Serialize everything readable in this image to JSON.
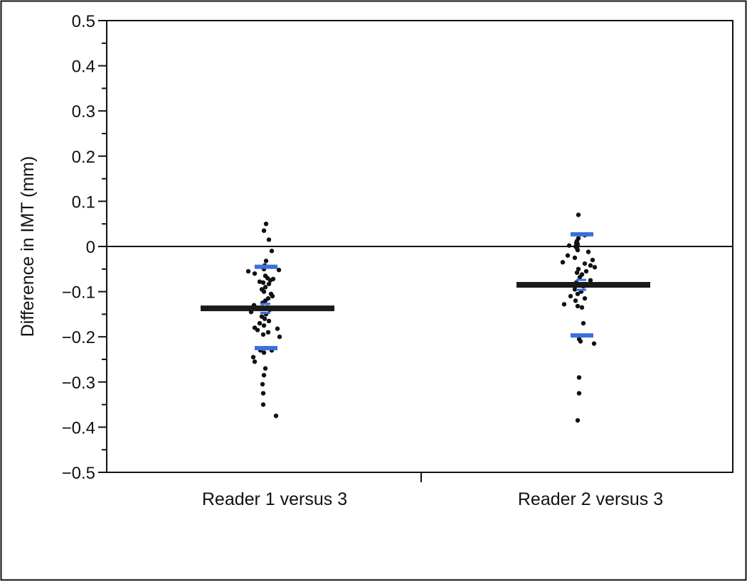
{
  "chart_data": {
    "type": "scatter",
    "ylabel": "Difference in IMT (mm)",
    "ylim": [
      -0.5,
      0.5
    ],
    "yticks": [
      "0.5",
      "0.4",
      "0.3",
      "0.2",
      "0.1",
      "0",
      "−0.1",
      "−0.2",
      "−0.3",
      "−0.4",
      "−0.5"
    ],
    "ytick_values": [
      0.5,
      0.4,
      0.3,
      0.2,
      0.1,
      0,
      -0.1,
      -0.2,
      -0.3,
      -0.4,
      -0.5
    ],
    "categories": [
      "Reader 1 versus 3",
      "Reader 2 versus 3"
    ],
    "reference_line": 0,
    "grid": false,
    "colors": {
      "points": "#111111",
      "mean": "#1a1a1a",
      "limits": "#3a6fe0"
    },
    "groups": [
      {
        "category": "Reader 1 versus 3",
        "mean": -0.137,
        "limits_of_agreement": [
          -0.045,
          -0.225
        ],
        "mean_ci": [
          -0.127,
          -0.147
        ],
        "points": [
          {
            "jitter": 0.04,
            "y": 0.05
          },
          {
            "jitter": 0.01,
            "y": 0.035
          },
          {
            "jitter": 0.08,
            "y": 0.015
          },
          {
            "jitter": 0.12,
            "y": -0.01
          },
          {
            "jitter": 0.04,
            "y": -0.032
          },
          {
            "jitter": 0.02,
            "y": -0.042
          },
          {
            "jitter": 0.01,
            "y": -0.05
          },
          {
            "jitter": 0.22,
            "y": -0.052
          },
          {
            "jitter": -0.21,
            "y": -0.055
          },
          {
            "jitter": -0.12,
            "y": -0.06
          },
          {
            "jitter": 0.03,
            "y": -0.065
          },
          {
            "jitter": 0.06,
            "y": -0.07
          },
          {
            "jitter": 0.14,
            "y": -0.072
          },
          {
            "jitter": 0.1,
            "y": -0.075
          },
          {
            "jitter": -0.05,
            "y": -0.078
          },
          {
            "jitter": 0.0,
            "y": -0.08
          },
          {
            "jitter": 0.08,
            "y": -0.083
          },
          {
            "jitter": 0.03,
            "y": -0.09
          },
          {
            "jitter": -0.02,
            "y": -0.095
          },
          {
            "jitter": 0.01,
            "y": -0.1
          },
          {
            "jitter": 0.11,
            "y": -0.105
          },
          {
            "jitter": 0.13,
            "y": -0.11
          },
          {
            "jitter": 0.07,
            "y": -0.115
          },
          {
            "jitter": 0.03,
            "y": -0.12
          },
          {
            "jitter": -0.01,
            "y": -0.125
          },
          {
            "jitter": -0.13,
            "y": -0.13
          },
          {
            "jitter": 0.06,
            "y": -0.135
          },
          {
            "jitter": -0.16,
            "y": -0.138
          },
          {
            "jitter": 0.09,
            "y": -0.14
          },
          {
            "jitter": -0.17,
            "y": -0.145
          },
          {
            "jitter": 0.04,
            "y": -0.15
          },
          {
            "jitter": -0.02,
            "y": -0.155
          },
          {
            "jitter": 0.02,
            "y": -0.16
          },
          {
            "jitter": 0.08,
            "y": -0.165
          },
          {
            "jitter": -0.05,
            "y": -0.17
          },
          {
            "jitter": 0.01,
            "y": -0.175
          },
          {
            "jitter": -0.12,
            "y": -0.18
          },
          {
            "jitter": 0.2,
            "y": -0.182
          },
          {
            "jitter": -0.08,
            "y": -0.185
          },
          {
            "jitter": 0.07,
            "y": -0.19
          },
          {
            "jitter": 0.0,
            "y": -0.195
          },
          {
            "jitter": 0.23,
            "y": -0.2
          },
          {
            "jitter": 0.04,
            "y": -0.225
          },
          {
            "jitter": -0.04,
            "y": -0.23
          },
          {
            "jitter": 0.12,
            "y": -0.23
          },
          {
            "jitter": 0.01,
            "y": -0.235
          },
          {
            "jitter": -0.14,
            "y": -0.245
          },
          {
            "jitter": -0.12,
            "y": -0.255
          },
          {
            "jitter": 0.03,
            "y": -0.27
          },
          {
            "jitter": 0.01,
            "y": -0.285
          },
          {
            "jitter": -0.01,
            "y": -0.305
          },
          {
            "jitter": 0.0,
            "y": -0.325
          },
          {
            "jitter": 0.0,
            "y": -0.35
          },
          {
            "jitter": 0.18,
            "y": -0.375
          }
        ]
      },
      {
        "category": "Reader 2 versus 3",
        "mean": -0.085,
        "limits_of_agreement": [
          0.027,
          -0.197
        ],
        "mean_ci": [
          -0.074,
          -0.096
        ],
        "points": [
          {
            "jitter": -0.01,
            "y": 0.07
          },
          {
            "jitter": 0.08,
            "y": 0.025
          },
          {
            "jitter": -0.01,
            "y": 0.018
          },
          {
            "jitter": -0.03,
            "y": 0.012
          },
          {
            "jitter": -0.04,
            "y": 0.008
          },
          {
            "jitter": -0.02,
            "y": 0.005
          },
          {
            "jitter": -0.14,
            "y": 0.002
          },
          {
            "jitter": -0.05,
            "y": 0.0
          },
          {
            "jitter": -0.03,
            "y": -0.004
          },
          {
            "jitter": -0.02,
            "y": -0.008
          },
          {
            "jitter": 0.13,
            "y": -0.012
          },
          {
            "jitter": -0.16,
            "y": -0.02
          },
          {
            "jitter": -0.06,
            "y": -0.025
          },
          {
            "jitter": 0.19,
            "y": -0.03
          },
          {
            "jitter": -0.23,
            "y": -0.035
          },
          {
            "jitter": 0.08,
            "y": -0.038
          },
          {
            "jitter": 0.16,
            "y": -0.042
          },
          {
            "jitter": 0.22,
            "y": -0.046
          },
          {
            "jitter": -0.01,
            "y": -0.05
          },
          {
            "jitter": 0.1,
            "y": -0.055
          },
          {
            "jitter": -0.03,
            "y": -0.058
          },
          {
            "jitter": 0.04,
            "y": -0.062
          },
          {
            "jitter": 0.01,
            "y": -0.068
          },
          {
            "jitter": 0.16,
            "y": -0.075
          },
          {
            "jitter": -0.04,
            "y": -0.08
          },
          {
            "jitter": 0.06,
            "y": -0.088
          },
          {
            "jitter": -0.06,
            "y": -0.095
          },
          {
            "jitter": 0.03,
            "y": -0.1
          },
          {
            "jitter": -0.02,
            "y": -0.105
          },
          {
            "jitter": -0.12,
            "y": -0.11
          },
          {
            "jitter": 0.08,
            "y": -0.115
          },
          {
            "jitter": -0.05,
            "y": -0.12
          },
          {
            "jitter": -0.21,
            "y": -0.128
          },
          {
            "jitter": -0.02,
            "y": -0.132
          },
          {
            "jitter": 0.04,
            "y": -0.135
          },
          {
            "jitter": 0.06,
            "y": -0.17
          },
          {
            "jitter": 0.0,
            "y": -0.205
          },
          {
            "jitter": 0.02,
            "y": -0.21
          },
          {
            "jitter": 0.21,
            "y": -0.215
          },
          {
            "jitter": 0.0,
            "y": -0.29
          },
          {
            "jitter": 0.0,
            "y": -0.325
          },
          {
            "jitter": -0.02,
            "y": -0.385
          }
        ]
      }
    ]
  }
}
